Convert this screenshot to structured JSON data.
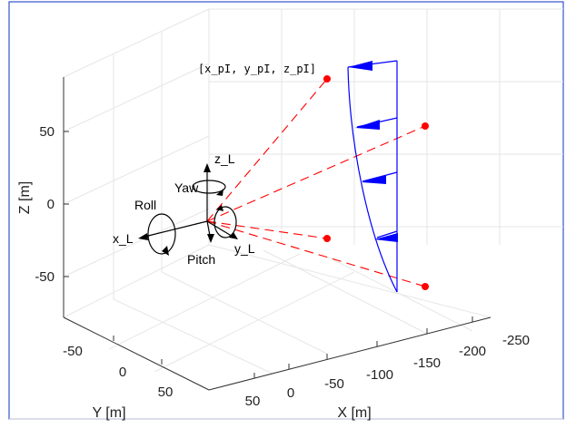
{
  "chart_data": {
    "type": "3d-line",
    "xlabel": "X [m]",
    "ylabel": "Y [m]",
    "zlabel": "Z [m]",
    "x_ticks": [
      "-250",
      "-200",
      "-150",
      "-100",
      "-50",
      "0",
      "50"
    ],
    "y_ticks": [
      "-50",
      "0",
      "50"
    ],
    "z_ticks": [
      "50",
      "0",
      "-50"
    ],
    "grid": true,
    "frame_color": "#3355cc",
    "body_axes": {
      "x_label": "x_L",
      "y_label": "y_L",
      "z_label": "z_L",
      "roll_label": "Roll",
      "pitch_label": "Pitch",
      "yaw_label": "Yaw"
    },
    "point_label": "[x_pI, y_pI, z_pI]",
    "target_points": [
      {
        "x": -175,
        "y": -60,
        "z": 70
      },
      {
        "x": -250,
        "y": -20,
        "z": 40
      },
      {
        "x": -150,
        "y": 10,
        "z": -20
      },
      {
        "x": -200,
        "y": 40,
        "z": -60
      }
    ],
    "line_colors": {
      "dashed_rays": "#ff0000",
      "points": "#ff0000",
      "wind_profile": "#0000ff"
    }
  }
}
